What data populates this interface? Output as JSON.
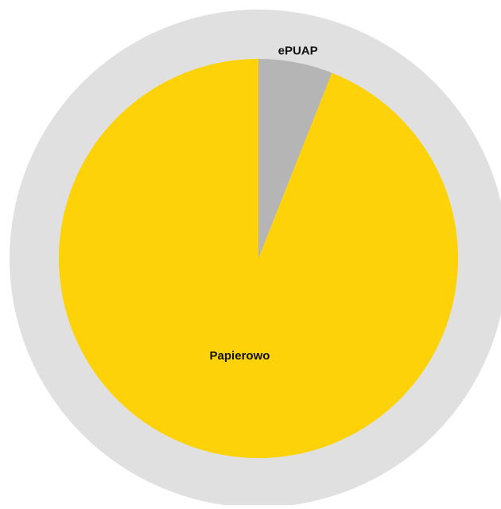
{
  "chart_data": {
    "type": "pie",
    "title": "",
    "slices": [
      {
        "label": "ePUAP",
        "value": 6,
        "color": "#b5b5b5"
      },
      {
        "label": "Papierowo",
        "value": 94,
        "color": "#fdd208"
      }
    ],
    "ring_color": "#e0e0e0",
    "legend": "none"
  }
}
